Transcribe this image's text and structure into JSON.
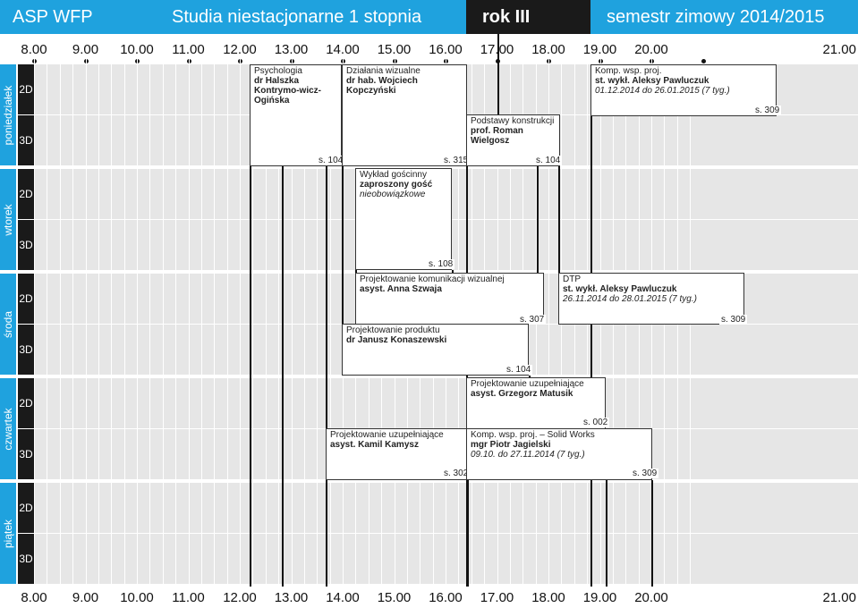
{
  "header": {
    "school": "ASP WFP",
    "program": "Studia niestacjonarne 1 stopnia",
    "year": "rok III",
    "semester": "semestr zimowy 2014/2015"
  },
  "times": [
    "8.00",
    "9.00",
    "10.00",
    "11.00",
    "12.00",
    "13.00",
    "14.00",
    "15.00",
    "16.00",
    "17.00",
    "18.00",
    "19.00",
    "20.00",
    "21.00"
  ],
  "days": [
    {
      "name": "poniedziałek",
      "groups": [
        "2D",
        "3D"
      ]
    },
    {
      "name": "wtorek",
      "groups": [
        "2D",
        "3D"
      ]
    },
    {
      "name": "środa",
      "groups": [
        "2D",
        "3D"
      ]
    },
    {
      "name": "czwartek",
      "groups": [
        "2D",
        "3D"
      ]
    },
    {
      "name": "piątek",
      "groups": [
        "2D",
        "3D"
      ]
    }
  ],
  "events": {
    "psych": {
      "title": "Psychologia",
      "lecturer": "dr Halszka Kontrymo-wicz-Ogińska",
      "room": "s. 104"
    },
    "dzialania": {
      "title": "Działania wizualne",
      "lecturer": "dr hab. Wojciech Kopczyński",
      "room": "s. 315"
    },
    "podstawy": {
      "title": "Podstawy konstrukcji",
      "lecturer": "prof. Roman Wielgosz",
      "room": "s. 104"
    },
    "komp_mon": {
      "title": "Komp. wsp. proj.",
      "lecturer": "st. wykł. Aleksy Pawluczuk",
      "dates": "01.12.2014 do 26.01.2015 (7 tyg.)",
      "room": "s. 309"
    },
    "wyklad": {
      "title": "Wykład gościnny",
      "lecturer": "zaproszony gość",
      "note": "nieobowiązkowe",
      "room": "s. 108"
    },
    "pkw": {
      "title": "Projektowanie komunikacji wizualnej",
      "lecturer": "asyst. Anna Szwaja",
      "room": "s. 307"
    },
    "dtp": {
      "title": "DTP",
      "lecturer": "st. wykł. Aleksy Pawluczuk",
      "dates": "26.11.2014 do 28.01.2015 (7 tyg.)",
      "room": "s. 309"
    },
    "pp": {
      "title": "Projektowanie produktu",
      "lecturer": "dr Janusz Konaszewski",
      "room": "s. 104"
    },
    "pu_mat": {
      "title": "Projektowanie uzupełniające",
      "lecturer": "asyst. Grzegorz Matusik",
      "room": "s. 002"
    },
    "pu_kam": {
      "title": "Projektowanie uzupełniające",
      "lecturer": "asyst. Kamil Kamysz",
      "room": "s. 302"
    },
    "komp_thu": {
      "title": "Komp. wsp. proj. – Solid Works",
      "lecturer": "mgr Piotr Jagielski",
      "dates": "09.10. do 27.11.2014 (7 tyg.)",
      "room": "s. 309"
    }
  }
}
